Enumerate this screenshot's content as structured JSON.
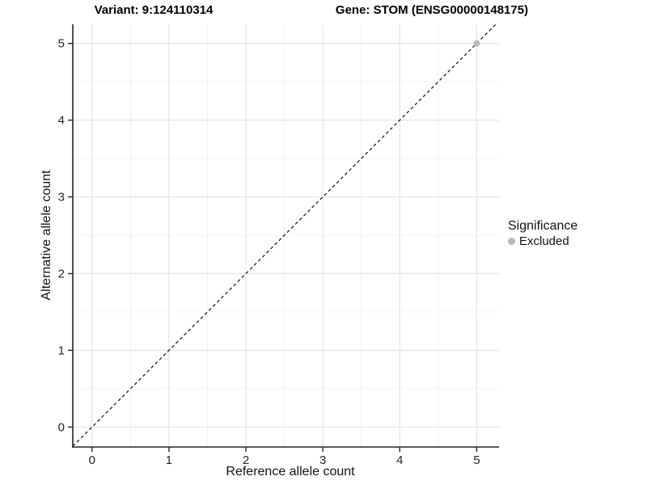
{
  "figure": {
    "background": "#ffffff",
    "titles": {
      "variant": "Variant: 9:124110314",
      "gene": "Gene: STOM (ENSG00000148175)"
    },
    "legend": {
      "title": "Significance",
      "items": [
        {
          "label": "Excluded",
          "color": "#b9b9b9"
        }
      ]
    }
  },
  "chart_data": {
    "type": "scatter",
    "title": "Variant: 9:124110314 — Gene: STOM (ENSG00000148175)",
    "xlabel": "Reference allele count",
    "ylabel": "Alternative allele count",
    "xlim": [
      -0.25,
      5.29
    ],
    "ylim": [
      -0.26,
      5.25
    ],
    "x_ticks": [
      0,
      1,
      2,
      3,
      4,
      5
    ],
    "y_ticks": [
      0,
      1,
      2,
      3,
      4,
      5
    ],
    "grid": {
      "major": true,
      "minor": true,
      "major_color": "#e2e2e2",
      "minor_color": "#f0f0f0"
    },
    "reference_line": {
      "type": "abline",
      "slope": 1,
      "intercept": 0,
      "style": "dashed",
      "color": "#111111"
    },
    "series": [
      {
        "name": "Excluded",
        "color": "#b9b9b9",
        "points": [
          {
            "x": 5,
            "y": 5
          }
        ]
      }
    ],
    "legend_position": "right",
    "legend_title": "Significance",
    "axis_color": "#262626",
    "tick_label_color": "#262626"
  }
}
